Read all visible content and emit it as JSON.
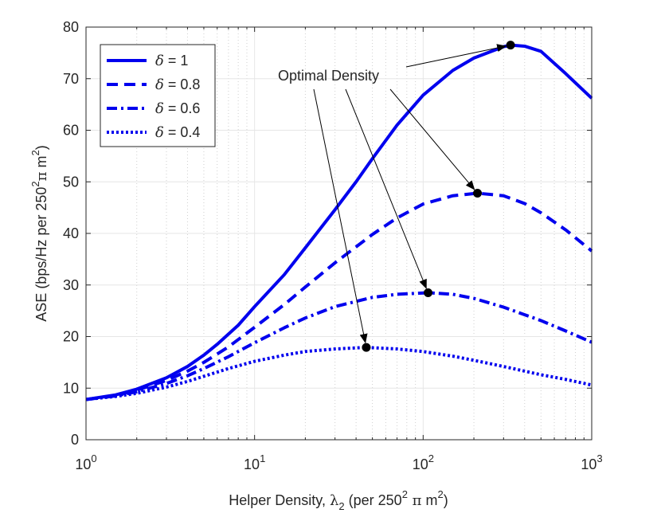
{
  "chart_data": {
    "type": "line",
    "xscale": "log",
    "xlim": [
      1,
      1000
    ],
    "ylim": [
      0,
      80
    ],
    "xticks": [
      {
        "value": 1,
        "base": "10",
        "exp": "0"
      },
      {
        "value": 10,
        "base": "10",
        "exp": "1"
      },
      {
        "value": 100,
        "base": "10",
        "exp": "2"
      },
      {
        "value": 1000,
        "base": "10",
        "exp": "3"
      }
    ],
    "yticks": [
      0,
      10,
      20,
      30,
      40,
      50,
      60,
      70,
      80
    ],
    "xlabel": {
      "prefix": "Helper Density, ",
      "symbol": "λ",
      "sub": "2",
      "mid": " (per 250",
      "sup": "2",
      "pi": " π",
      "unit": " m",
      "sup2": "2",
      "end": ")"
    },
    "ylabel": {
      "prefix": "ASE (bps/Hz per 250",
      "sup": "2",
      "pi": "π",
      "unit": " m",
      "sup2": "2",
      "end": ")"
    },
    "grid": true,
    "color": "#0000ee",
    "series": [
      {
        "name": "δ = 1",
        "delta": "1",
        "style": "solid",
        "x": [
          1,
          1.5,
          2,
          3,
          4,
          5,
          6,
          8,
          10,
          15,
          20,
          30,
          40,
          50,
          70,
          100,
          150,
          200,
          300,
          330,
          400,
          500,
          700,
          1000
        ],
        "y": [
          7.8,
          8.7,
          9.8,
          12.0,
          14.2,
          16.4,
          18.5,
          22.2,
          25.8,
          32.0,
          37.2,
          44.6,
          50.0,
          54.5,
          61.0,
          66.8,
          71.6,
          74.0,
          76.2,
          76.5,
          76.3,
          75.3,
          71.0,
          66.2
        ]
      },
      {
        "name": "δ = 0.8",
        "delta": "0.8",
        "style": "dashed",
        "x": [
          1,
          1.5,
          2,
          3,
          4,
          5,
          7,
          10,
          15,
          20,
          30,
          50,
          70,
          100,
          150,
          210,
          300,
          400,
          500,
          700,
          1000
        ],
        "y": [
          7.8,
          8.6,
          9.6,
          11.5,
          13.3,
          15.0,
          18.0,
          21.8,
          26.2,
          29.6,
          34.3,
          39.8,
          43.0,
          45.7,
          47.3,
          47.8,
          47.3,
          45.8,
          44.0,
          40.7,
          36.6
        ]
      },
      {
        "name": "δ = 0.6",
        "delta": "0.6",
        "style": "dashdot",
        "x": [
          1,
          1.5,
          2,
          3,
          4,
          5,
          7,
          10,
          15,
          20,
          30,
          50,
          70,
          107,
          150,
          200,
          300,
          500,
          700,
          1000
        ],
        "y": [
          7.8,
          8.5,
          9.3,
          10.9,
          12.4,
          13.8,
          16.1,
          18.8,
          21.7,
          23.6,
          25.8,
          27.6,
          28.2,
          28.5,
          28.2,
          27.4,
          25.7,
          23.1,
          21.1,
          18.9
        ]
      },
      {
        "name": "δ = 0.4",
        "delta": "0.4",
        "style": "dotted",
        "x": [
          1,
          1.5,
          2,
          3,
          4,
          5,
          7,
          10,
          15,
          20,
          30,
          46,
          70,
          100,
          150,
          200,
          300,
          500,
          700,
          1000
        ],
        "y": [
          7.8,
          8.4,
          9.0,
          10.2,
          11.3,
          12.3,
          13.8,
          15.2,
          16.4,
          17.1,
          17.6,
          17.9,
          17.6,
          17.1,
          16.2,
          15.4,
          14.2,
          12.6,
          11.7,
          10.6
        ]
      }
    ],
    "optimal_points": [
      {
        "series": "δ = 1",
        "x": 330,
        "y": 76.5
      },
      {
        "series": "δ = 0.8",
        "x": 210,
        "y": 47.8
      },
      {
        "series": "δ = 0.6",
        "x": 107,
        "y": 28.5
      },
      {
        "series": "δ = 0.4",
        "x": 46,
        "y": 17.9
      }
    ],
    "annotation": "Optimal Density",
    "legend_position": "top-left"
  }
}
